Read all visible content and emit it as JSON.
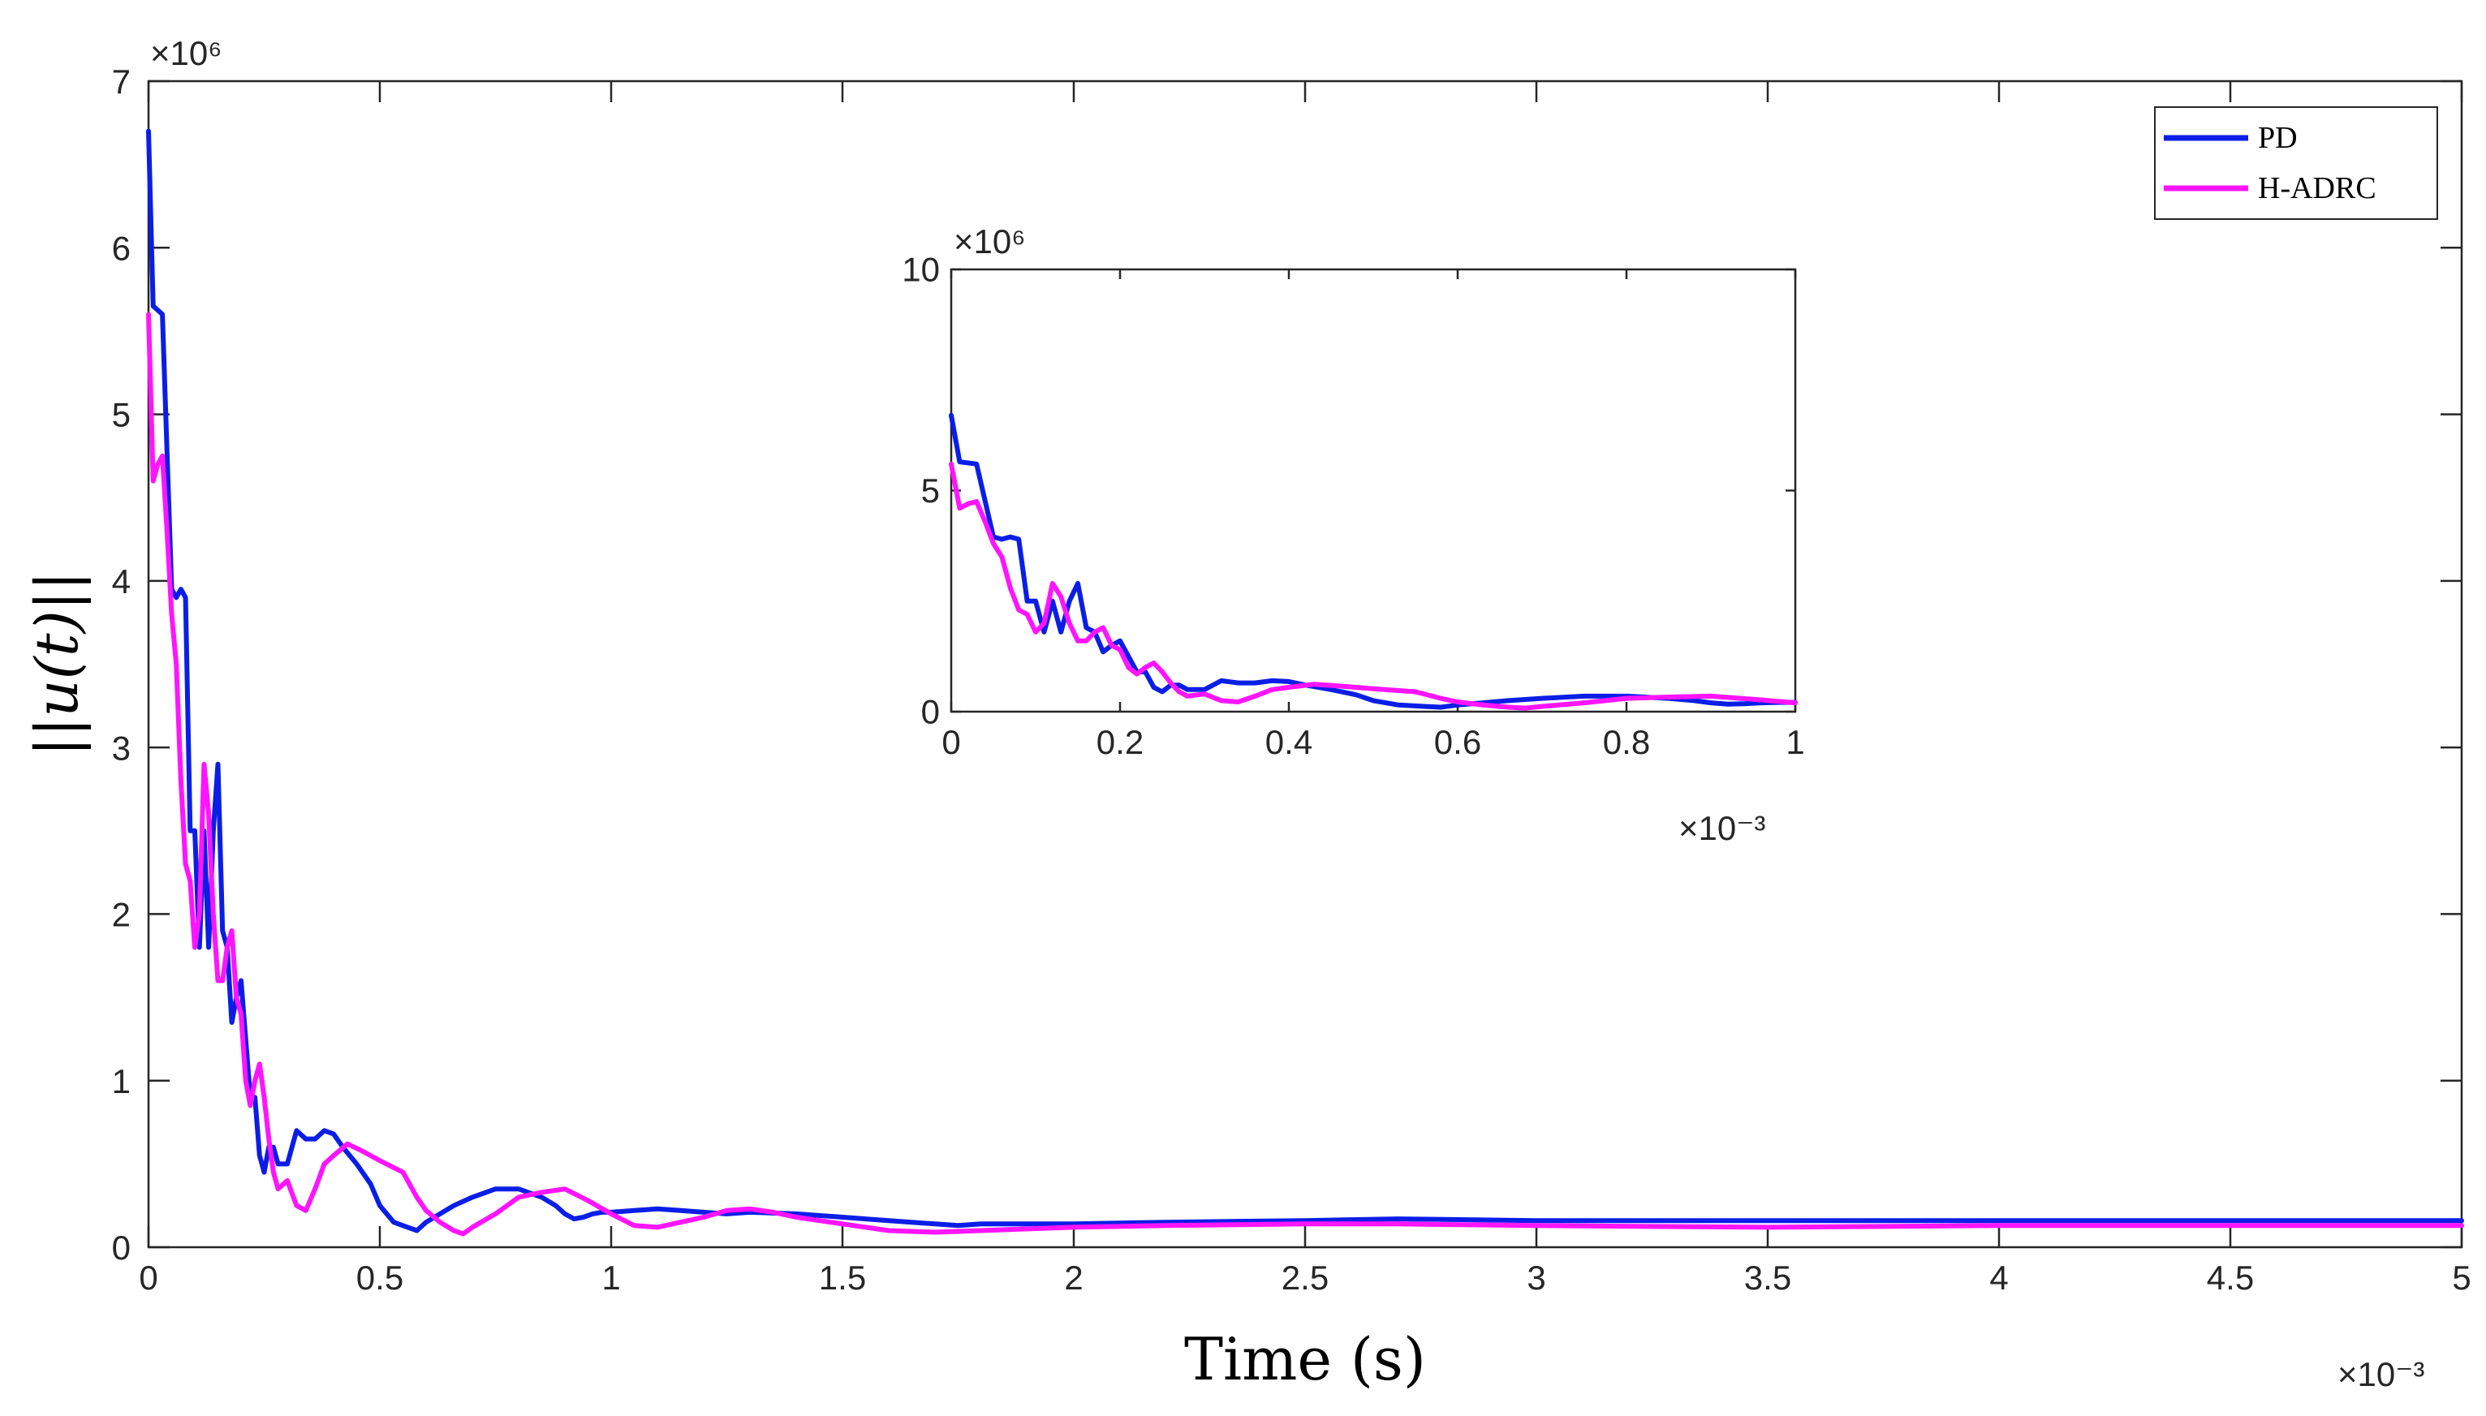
{
  "chart_data": [
    {
      "id": "main",
      "type": "line",
      "title": "",
      "xlabel": "Time (s)",
      "ylabel": "||u(t)||",
      "xlim": [
        0,
        5
      ],
      "ylim": [
        0,
        7
      ],
      "xticks": [
        0,
        0.5,
        1,
        1.5,
        2,
        2.5,
        3,
        3.5,
        4,
        4.5,
        5
      ],
      "xtick_labels": [
        "0",
        "0.5",
        "1",
        "1.5",
        "2",
        "2.5",
        "3",
        "3.5",
        "4",
        "4.5",
        "5"
      ],
      "yticks": [
        0,
        1,
        2,
        3,
        4,
        5,
        6,
        7
      ],
      "ytick_labels": [
        "0",
        "1",
        "2",
        "3",
        "4",
        "5",
        "6",
        "7"
      ],
      "x_exponent": "×10⁻³",
      "y_exponent": "×10⁶",
      "legend": {
        "position": "top-right",
        "entries": [
          "PD",
          "H-ADRC"
        ]
      },
      "series": [
        {
          "name": "PD",
          "color": "#0a1ee6",
          "x": [
            0,
            0.01,
            0.03,
            0.05,
            0.06,
            0.07,
            0.08,
            0.09,
            0.1,
            0.11,
            0.12,
            0.13,
            0.14,
            0.15,
            0.16,
            0.17,
            0.18,
            0.19,
            0.2,
            0.22,
            0.23,
            0.24,
            0.25,
            0.26,
            0.27,
            0.28,
            0.3,
            0.32,
            0.34,
            0.36,
            0.38,
            0.4,
            0.42,
            0.45,
            0.48,
            0.5,
            0.53,
            0.56,
            0.58,
            0.6,
            0.63,
            0.66,
            0.7,
            0.75,
            0.8,
            0.85,
            0.88,
            0.9,
            0.92,
            0.94,
            0.96,
            0.98,
            1.0,
            1.05,
            1.1,
            1.15,
            1.2,
            1.25,
            1.3,
            1.4,
            1.5,
            1.6,
            1.7,
            1.75,
            1.8,
            1.9,
            2.0,
            2.2,
            2.5,
            2.7,
            3.0,
            3.5,
            4.0,
            4.5,
            5.0
          ],
          "values": [
            6.7,
            5.65,
            5.6,
            3.95,
            3.9,
            3.95,
            3.9,
            2.5,
            2.5,
            1.8,
            2.5,
            1.8,
            2.5,
            2.9,
            1.9,
            1.8,
            1.35,
            1.5,
            1.6,
            0.9,
            0.9,
            0.55,
            0.45,
            0.6,
            0.6,
            0.5,
            0.5,
            0.7,
            0.65,
            0.65,
            0.7,
            0.68,
            0.6,
            0.5,
            0.38,
            0.25,
            0.15,
            0.12,
            0.1,
            0.15,
            0.2,
            0.25,
            0.3,
            0.35,
            0.35,
            0.3,
            0.25,
            0.2,
            0.17,
            0.18,
            0.2,
            0.21,
            0.21,
            0.22,
            0.23,
            0.22,
            0.21,
            0.2,
            0.21,
            0.2,
            0.18,
            0.16,
            0.14,
            0.13,
            0.14,
            0.14,
            0.14,
            0.15,
            0.16,
            0.17,
            0.16,
            0.16,
            0.16,
            0.16,
            0.16
          ]
        },
        {
          "name": "H-ADRC",
          "color": "#ff14ff",
          "x": [
            0,
            0.01,
            0.02,
            0.03,
            0.04,
            0.05,
            0.06,
            0.07,
            0.08,
            0.09,
            0.1,
            0.11,
            0.12,
            0.13,
            0.14,
            0.15,
            0.16,
            0.17,
            0.18,
            0.19,
            0.2,
            0.21,
            0.22,
            0.23,
            0.24,
            0.25,
            0.26,
            0.27,
            0.28,
            0.3,
            0.32,
            0.34,
            0.36,
            0.38,
            0.4,
            0.43,
            0.46,
            0.5,
            0.55,
            0.58,
            0.6,
            0.63,
            0.66,
            0.68,
            0.7,
            0.75,
            0.8,
            0.85,
            0.9,
            0.95,
            1.0,
            1.05,
            1.1,
            1.15,
            1.2,
            1.25,
            1.3,
            1.35,
            1.4,
            1.5,
            1.6,
            1.7,
            1.8,
            1.9,
            2.0,
            2.2,
            2.5,
            2.7,
            3.0,
            3.5,
            4.0,
            4.5,
            5.0
          ],
          "values": [
            5.6,
            4.6,
            4.7,
            4.75,
            4.3,
            3.8,
            3.5,
            2.8,
            2.3,
            2.2,
            1.8,
            2.0,
            2.9,
            2.6,
            2.0,
            1.6,
            1.6,
            1.8,
            1.9,
            1.5,
            1.4,
            1.0,
            0.85,
            1.0,
            1.1,
            0.9,
            0.65,
            0.45,
            0.35,
            0.4,
            0.25,
            0.22,
            0.35,
            0.5,
            0.55,
            0.62,
            0.58,
            0.52,
            0.45,
            0.3,
            0.22,
            0.15,
            0.1,
            0.08,
            0.12,
            0.2,
            0.3,
            0.33,
            0.35,
            0.28,
            0.2,
            0.13,
            0.12,
            0.15,
            0.18,
            0.22,
            0.23,
            0.21,
            0.18,
            0.14,
            0.1,
            0.09,
            0.1,
            0.11,
            0.12,
            0.13,
            0.14,
            0.14,
            0.13,
            0.12,
            0.13,
            0.13,
            0.13
          ]
        }
      ]
    },
    {
      "id": "inset",
      "type": "line",
      "title": "",
      "xlabel": "",
      "ylabel": "",
      "xlim": [
        0,
        1
      ],
      "ylim": [
        0,
        10
      ],
      "xticks": [
        0,
        0.2,
        0.4,
        0.6,
        0.8,
        1
      ],
      "xtick_labels": [
        "0",
        "0.2",
        "0.4",
        "0.6",
        "0.8",
        "1"
      ],
      "yticks": [
        0,
        5,
        10
      ],
      "ytick_labels": [
        "0",
        "5",
        "10"
      ],
      "x_exponent": "×10⁻³",
      "y_exponent": "×10⁶",
      "series": [
        {
          "name": "PD",
          "color": "#0a1ee6",
          "x": [
            0,
            0.01,
            0.03,
            0.05,
            0.06,
            0.07,
            0.08,
            0.09,
            0.1,
            0.11,
            0.12,
            0.13,
            0.14,
            0.15,
            0.16,
            0.17,
            0.18,
            0.19,
            0.2,
            0.22,
            0.23,
            0.24,
            0.25,
            0.26,
            0.27,
            0.28,
            0.3,
            0.32,
            0.34,
            0.36,
            0.38,
            0.4,
            0.42,
            0.45,
            0.48,
            0.5,
            0.53,
            0.56,
            0.58,
            0.6,
            0.63,
            0.66,
            0.7,
            0.75,
            0.8,
            0.85,
            0.88,
            0.9,
            0.92,
            0.94,
            0.96,
            0.98,
            1.0
          ],
          "values": [
            6.7,
            5.65,
            5.6,
            3.95,
            3.9,
            3.95,
            3.9,
            2.5,
            2.5,
            1.8,
            2.5,
            1.8,
            2.5,
            2.9,
            1.9,
            1.8,
            1.35,
            1.5,
            1.6,
            0.9,
            0.9,
            0.55,
            0.45,
            0.6,
            0.6,
            0.5,
            0.5,
            0.7,
            0.65,
            0.65,
            0.7,
            0.68,
            0.6,
            0.5,
            0.38,
            0.25,
            0.15,
            0.12,
            0.1,
            0.15,
            0.2,
            0.25,
            0.3,
            0.35,
            0.35,
            0.3,
            0.25,
            0.2,
            0.17,
            0.18,
            0.2,
            0.21,
            0.21
          ]
        },
        {
          "name": "H-ADRC",
          "color": "#ff14ff",
          "x": [
            0,
            0.01,
            0.02,
            0.03,
            0.04,
            0.05,
            0.06,
            0.07,
            0.08,
            0.09,
            0.1,
            0.11,
            0.12,
            0.13,
            0.14,
            0.15,
            0.16,
            0.17,
            0.18,
            0.19,
            0.2,
            0.21,
            0.22,
            0.23,
            0.24,
            0.25,
            0.26,
            0.27,
            0.28,
            0.3,
            0.32,
            0.34,
            0.36,
            0.38,
            0.4,
            0.43,
            0.46,
            0.5,
            0.55,
            0.58,
            0.6,
            0.63,
            0.66,
            0.68,
            0.7,
            0.75,
            0.8,
            0.85,
            0.9,
            0.95,
            1.0
          ],
          "values": [
            5.6,
            4.6,
            4.7,
            4.75,
            4.3,
            3.8,
            3.5,
            2.8,
            2.3,
            2.2,
            1.8,
            2.0,
            2.9,
            2.6,
            2.0,
            1.6,
            1.6,
            1.8,
            1.9,
            1.5,
            1.4,
            1.0,
            0.85,
            1.0,
            1.1,
            0.9,
            0.65,
            0.45,
            0.35,
            0.4,
            0.25,
            0.22,
            0.35,
            0.5,
            0.55,
            0.62,
            0.58,
            0.52,
            0.45,
            0.3,
            0.22,
            0.15,
            0.1,
            0.08,
            0.12,
            0.2,
            0.3,
            0.33,
            0.35,
            0.28,
            0.2
          ]
        }
      ]
    }
  ]
}
